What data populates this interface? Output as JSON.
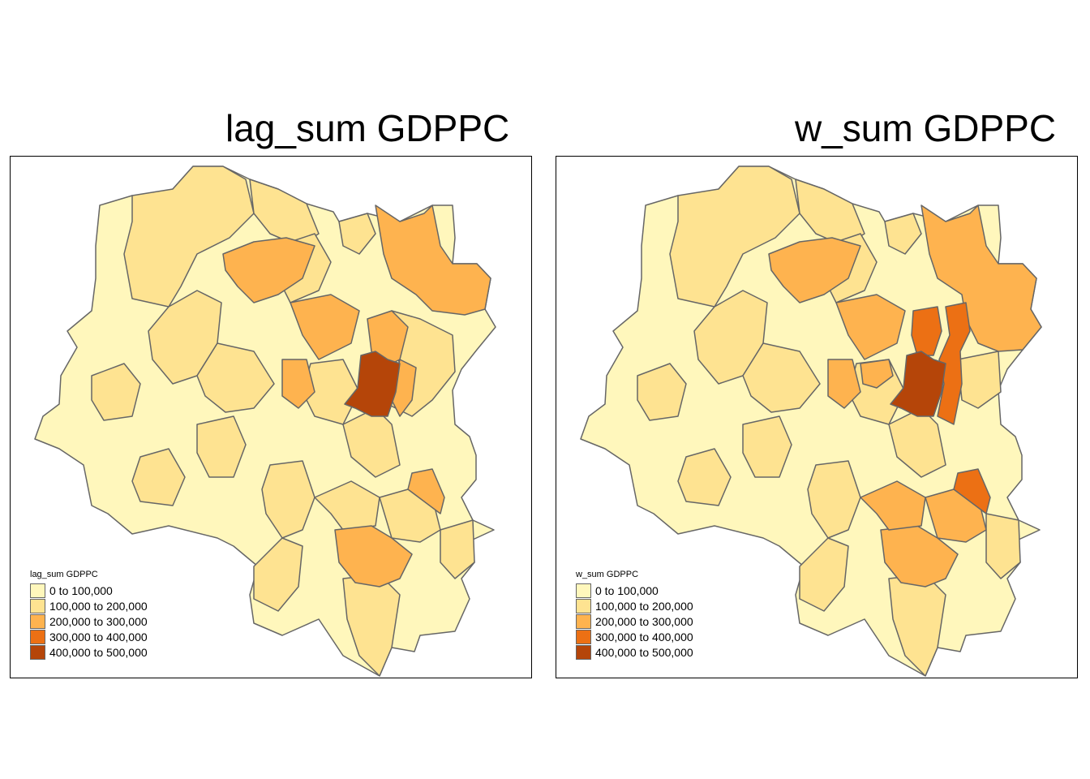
{
  "colors": {
    "class_1": "#FFF7BC",
    "class_2": "#FEE391",
    "class_3": "#FEB34F",
    "class_4": "#EC7014",
    "class_5": "#B54509",
    "border": "#666666"
  },
  "maps": [
    {
      "title": "lag_sum GDPPC",
      "legend": {
        "title": "lag_sum GDPPC",
        "items": [
          "0 to 100,000",
          "100,000 to 200,000",
          "200,000 to 300,000",
          "300,000 to 400,000",
          "400,000 to 500,000"
        ]
      }
    },
    {
      "title": "w_sum GDPPC",
      "legend": {
        "title": "w_sum GDPPC",
        "items": [
          "0 to 100,000",
          "100,000 to 200,000",
          "200,000 to 300,000",
          "300,000 to 400,000",
          "400,000 to 500,000"
        ]
      }
    }
  ]
}
